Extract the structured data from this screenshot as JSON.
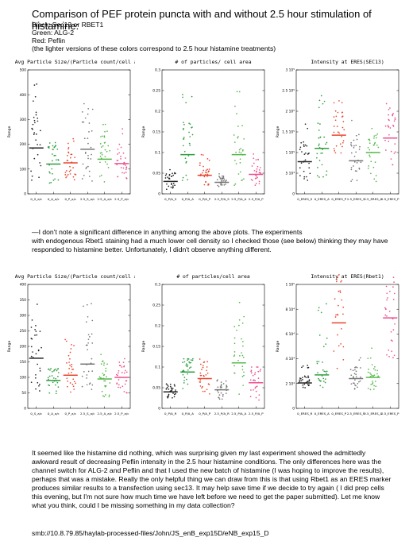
{
  "header": {
    "title": "Comparison of PEF protein puncta with and without 2.5 hour stimulation of histamine:",
    "legend_lines": [
      "Black: Sec13 or RBET1",
      "Green: ALG-2",
      "Red: Peflin",
      "(the lighter versions of these colors correspond to 2.5 hour histamine treatments)"
    ]
  },
  "notes": {
    "first": "—I don't note a significant difference in anything among the above plots. The experiments\nwith endogenous Rbet1 staining had a much lower cell density so I checked those (see below) thinking they may have\nresponded to histamine better. Unfortunately, I didn't observe anything different.",
    "second": "It seemed like the histamine did nothing, which was surprising given my last experiment showed the admittedly\nawkward result of decreasing Peflin intensity in the 2.5 hour histamine conditions. The only differences here was the\nchannel switch for ALG-2 and Peflin and that I used the new batch of histamine (I was hoping to improve the results),\nperhaps that was a mistake. Really the only helpful thing we can draw from this is that using Rbet1 as an ERES marker\nproduces similar results to a transfection using sec13. It may help save time if we decide to try again ( I did prep cells\nthis evening, but I'm not sure how much time we have left before we need to get the paper submitted). Let me know\nwhat you think, could I be missing something in my data collection?",
    "path": "smb://10.8.79.85/haylab-processed-files/John/JS_enB_exp15D/eNB_exp15_D"
  },
  "colors": {
    "black": "#222222",
    "green": "#2e9e3e",
    "red": "#e8452d",
    "light_black": "#777777",
    "light_green": "#54b848",
    "light_red": "#ee4f8e"
  },
  "chart_data": [
    {
      "type": "scatter",
      "title": "Avg Particle Size/(Particle count/cell are",
      "ylabel": "Range",
      "ylim": [
        0,
        500
      ],
      "yticks": [
        "0",
        "100",
        "200",
        "300",
        "400",
        "500"
      ],
      "categories": [
        "0_S_a/c",
        "0_A_a/c",
        "0_P_a/c",
        "2.5_S_a/c",
        "2.5_A_a/c",
        "2.5_P_a/c"
      ],
      "means": [
        185,
        120,
        125,
        180,
        140,
        122
      ],
      "spread": [
        [
          40,
          450
        ],
        [
          40,
          210
        ],
        [
          50,
          240
        ],
        [
          50,
          380
        ],
        [
          40,
          300
        ],
        [
          60,
          280
        ]
      ]
    },
    {
      "type": "scatter",
      "title": "# of particles/ cell area",
      "ylabel": "Range",
      "ylim": [
        0,
        0.3
      ],
      "yticks": [
        "0",
        "0.05",
        "0.1",
        "0.15",
        "0.2",
        "0.25",
        "0.3"
      ],
      "categories": [
        "0_P/A_S",
        "0_P/A_A",
        "0_P/A_P",
        "2.5_P/A_S",
        "2.5_P/A_A",
        "2.5_P/A_P"
      ],
      "means": [
        0.03,
        0.095,
        0.045,
        0.028,
        0.095,
        0.047
      ],
      "spread": [
        [
          0.01,
          0.06
        ],
        [
          0.01,
          0.27
        ],
        [
          0.02,
          0.11
        ],
        [
          0.015,
          0.05
        ],
        [
          0.02,
          0.25
        ],
        [
          0.02,
          0.1
        ]
      ]
    },
    {
      "type": "scatter",
      "title": "Intensity at ERES(SEC13)",
      "ylabel": "Range",
      "ylim": [
        0,
        3
      ],
      "yticks": [
        "0",
        "5 10⁴",
        "1 10⁵",
        "1.5 10⁵",
        "2 10⁵",
        "2.5 10⁵",
        "3 10⁵"
      ],
      "categories": [
        "0_ERES_S",
        "0_ERES_A",
        "0_ERES_P",
        "2.5_ERES_S",
        "2.5_ERES_A",
        "2.5_ERES_P"
      ],
      "means": [
        0.78,
        1.1,
        1.42,
        0.8,
        1.0,
        1.35
      ],
      "spread": [
        [
          0.3,
          1.8
        ],
        [
          0.4,
          2.4
        ],
        [
          0.8,
          2.3
        ],
        [
          0.3,
          1.8
        ],
        [
          0.3,
          1.6
        ],
        [
          0.6,
          2.2
        ]
      ]
    },
    {
      "type": "scatter",
      "title": "Avg Particle Size/(Particle count/cell are",
      "ylabel": "Range",
      "ylim": [
        0,
        400
      ],
      "yticks": [
        "0",
        "50",
        "100",
        "150",
        "200",
        "250",
        "300",
        "350",
        "400"
      ],
      "categories": [
        "0_S_a/c",
        "0_A_a/c",
        "0_P_a/c",
        "2.5_S_a/c",
        "2.5_A_a/c",
        "2.5_P_a/c"
      ],
      "means": [
        162,
        90,
        107,
        143,
        95,
        100
      ],
      "spread": [
        [
          55,
          350
        ],
        [
          45,
          150
        ],
        [
          50,
          240
        ],
        [
          45,
          360
        ],
        [
          35,
          180
        ],
        [
          45,
          170
        ]
      ]
    },
    {
      "type": "scatter",
      "title": "# of particles/cell area",
      "ylabel": "Range",
      "ylim": [
        0,
        0.3
      ],
      "yticks": [
        "0",
        "0.05",
        "0.1",
        "0.15",
        "0.2",
        "0.25",
        "0.3"
      ],
      "categories": [
        "0_P/A_R",
        "0_P/A_A",
        "0_P/A_P",
        "2.5_P/A_R",
        "2.5_P/A_A",
        "2.5_P/A_P"
      ],
      "means": [
        0.04,
        0.088,
        0.072,
        0.045,
        0.11,
        0.062
      ],
      "spread": [
        [
          0.025,
          0.06
        ],
        [
          0.04,
          0.12
        ],
        [
          0.03,
          0.13
        ],
        [
          0.02,
          0.07
        ],
        [
          0.03,
          0.27
        ],
        [
          0.02,
          0.1
        ]
      ]
    },
    {
      "type": "scatter",
      "title": "Intensity at ERES(Rbet1)",
      "ylabel": "Range",
      "ylim": [
        0,
        1
      ],
      "yticks": [
        "0",
        "2 10⁴",
        "4 10⁴",
        "6 10⁴",
        "8 10⁴",
        "1 10⁵"
      ],
      "categories": [
        "0_ERES_R",
        "0_ERES_A",
        "0_ERES_P",
        "2.5_ERES_R",
        "2.5_ERES_A",
        "2.5_ERES_P"
      ],
      "means": [
        0.205,
        0.27,
        0.69,
        0.24,
        0.25,
        0.73
      ],
      "spread": [
        [
          0.15,
          0.4
        ],
        [
          0.15,
          0.85
        ],
        [
          0.3,
          1.82
        ],
        [
          0.15,
          0.42
        ],
        [
          0.15,
          0.5
        ],
        [
          0.4,
          1.45
        ]
      ]
    }
  ]
}
